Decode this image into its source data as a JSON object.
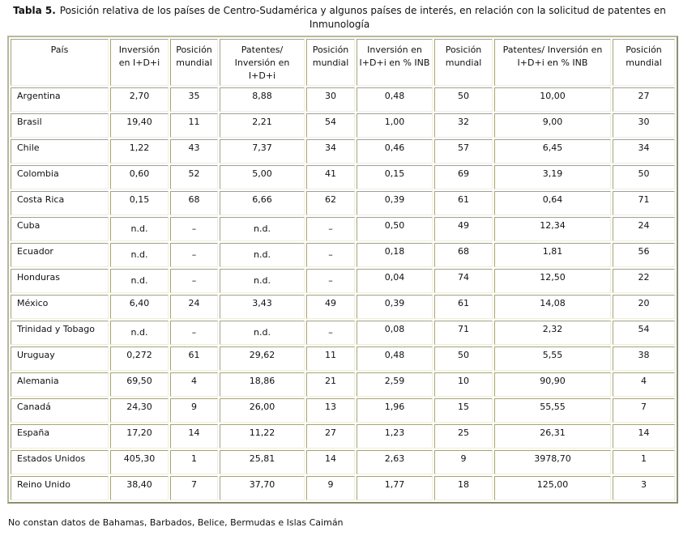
{
  "caption": {
    "label": "Tabla 5.",
    "line1": "Posición relativa de los países de Centro-Sudamérica y algunos países de interés, en relación con  la solicitud de patentes en",
    "line2": "Inmunología"
  },
  "chart_data": {
    "type": "table",
    "title": "Tabla 5. Posición relativa de los países de Centro-Sudamérica y algunos países de interés, en relación con la solicitud de patentes en Inmunología",
    "columns": [
      "País",
      "Inversión en I+D+i",
      "Posición mundial",
      "Patentes/ Inversión en I+D+i",
      "Posición mundial",
      "Inversión en I+D+i en % INB",
      "Posición mundial",
      "Patentes/ Inversión en I+D+i en % INB",
      "Posición mundial"
    ],
    "rows": [
      [
        "Argentina",
        "2,70",
        "35",
        "8,88",
        "30",
        "0,48",
        "50",
        "10,00",
        "27"
      ],
      [
        "Brasil",
        "19,40",
        "11",
        "2,21",
        "54",
        "1,00",
        "32",
        "9,00",
        "30"
      ],
      [
        "Chile",
        "1,22",
        "43",
        "7,37",
        "34",
        "0,46",
        "57",
        "6,45",
        "34"
      ],
      [
        "Colombia",
        "0,60",
        "52",
        "5,00",
        "41",
        "0,15",
        "69",
        "3,19",
        "50"
      ],
      [
        "Costa Rica",
        "0,15",
        "68",
        "6,66",
        "62",
        "0,39",
        "61",
        "0,64",
        "71"
      ],
      [
        "Cuba",
        "n.d.",
        "–",
        "n.d.",
        "–",
        "0,50",
        "49",
        "12,34",
        "24"
      ],
      [
        "Ecuador",
        "n.d.",
        "–",
        "n.d.",
        "–",
        "0,18",
        "68",
        "1,81",
        "56"
      ],
      [
        "Honduras",
        "n.d.",
        "–",
        "n.d.",
        "–",
        "0,04",
        "74",
        "12,50",
        "22"
      ],
      [
        "México",
        "6,40",
        "24",
        "3,43",
        "49",
        "0,39",
        "61",
        "14,08",
        "20"
      ],
      [
        "Trinidad y Tobago",
        "n.d.",
        "–",
        "n.d.",
        "–",
        "0,08",
        "71",
        "2,32",
        "54"
      ],
      [
        "Uruguay",
        "0,272",
        "61",
        "29,62",
        "11",
        "0,48",
        "50",
        "5,55",
        "38"
      ],
      [
        "Alemania",
        "69,50",
        "4",
        "18,86",
        "21",
        "2,59",
        "10",
        "90,90",
        "4"
      ],
      [
        "Canadá",
        "24,30",
        "9",
        "26,00",
        "13",
        "1,96",
        "15",
        "55,55",
        "7"
      ],
      [
        "España",
        "17,20",
        "14",
        "11,22",
        "27",
        "1,23",
        "25",
        "26,31",
        "14"
      ],
      [
        "Estados Unidos",
        "405,30",
        "1",
        "25,81",
        "14",
        "2,63",
        "9",
        "3978,70",
        "1"
      ],
      [
        "Reino Unido",
        "38,40",
        "7",
        "37,70",
        "9",
        "1,77",
        "18",
        "125,00",
        "3"
      ]
    ],
    "missing_value_marker": "n.d.",
    "missing_position_marker": "–"
  },
  "footnote": "No constan datos de Bahamas, Barbados, Belice, Bermudas e Islas Caimán",
  "colors": {
    "border_dark": "#a2a287",
    "border_light": "#eeeedd",
    "outer_border": "#a8a890",
    "text": "#111111",
    "background": "#ffffff"
  }
}
